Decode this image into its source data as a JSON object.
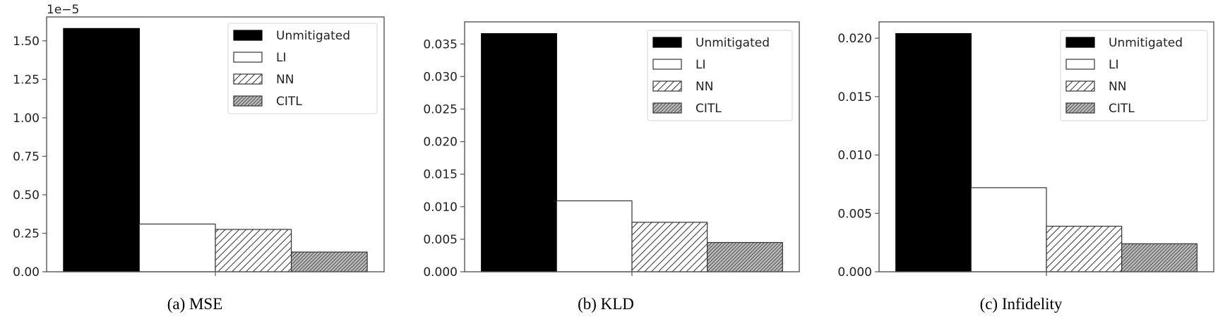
{
  "figure": {
    "captions": [
      "(a) MSE",
      "(b) KLD",
      "(c) Infidelity"
    ]
  },
  "legend": {
    "entries": [
      {
        "label": "Unmitigated",
        "style": "solid-black"
      },
      {
        "label": "LI",
        "style": "white"
      },
      {
        "label": "NN",
        "style": "hatch-sparse"
      },
      {
        "label": "CITL",
        "style": "hatch-dense"
      }
    ]
  },
  "colors": {
    "unmitigated": "#000000",
    "li": "#ffffff",
    "hatch_line": "#333333",
    "axis": "#555555",
    "legend_border": "#dddddd"
  },
  "chart_data": [
    {
      "type": "bar",
      "title": "(a) MSE",
      "xlabel": "",
      "ylabel": "",
      "offset_label": "1e−5",
      "categories": [
        "Unmitigated",
        "LI",
        "NN",
        "CITL"
      ],
      "values": [
        1.58,
        0.31,
        0.275,
        0.128
      ],
      "value_scale": 1e-05,
      "ylim": [
        0,
        1.655
      ],
      "yticks": [
        0.0,
        0.25,
        0.5,
        0.75,
        1.0,
        1.25,
        1.5
      ],
      "ytick_labels": [
        "0.00",
        "0.25",
        "0.50",
        "0.75",
        "1.00",
        "1.25",
        "1.50"
      ],
      "legend_position": "upper right",
      "grid": false
    },
    {
      "type": "bar",
      "title": "(b) KLD",
      "xlabel": "",
      "ylabel": "",
      "categories": [
        "Unmitigated",
        "LI",
        "NN",
        "CITL"
      ],
      "values": [
        0.0366,
        0.0109,
        0.0076,
        0.0045
      ],
      "ylim": [
        0,
        0.0384
      ],
      "yticks": [
        0.0,
        0.005,
        0.01,
        0.015,
        0.02,
        0.025,
        0.03,
        0.035
      ],
      "ytick_labels": [
        "0.000",
        "0.005",
        "0.010",
        "0.015",
        "0.020",
        "0.025",
        "0.030",
        "0.035"
      ],
      "legend_position": "upper right",
      "grid": false
    },
    {
      "type": "bar",
      "title": "(c) Infidelity",
      "xlabel": "",
      "ylabel": "",
      "categories": [
        "Unmitigated",
        "LI",
        "NN",
        "CITL"
      ],
      "values": [
        0.0204,
        0.0072,
        0.0039,
        0.0024
      ],
      "ylim": [
        0,
        0.0214
      ],
      "yticks": [
        0.0,
        0.005,
        0.01,
        0.015,
        0.02
      ],
      "ytick_labels": [
        "0.000",
        "0.005",
        "0.010",
        "0.015",
        "0.020"
      ],
      "legend_position": "upper right",
      "grid": false
    }
  ]
}
